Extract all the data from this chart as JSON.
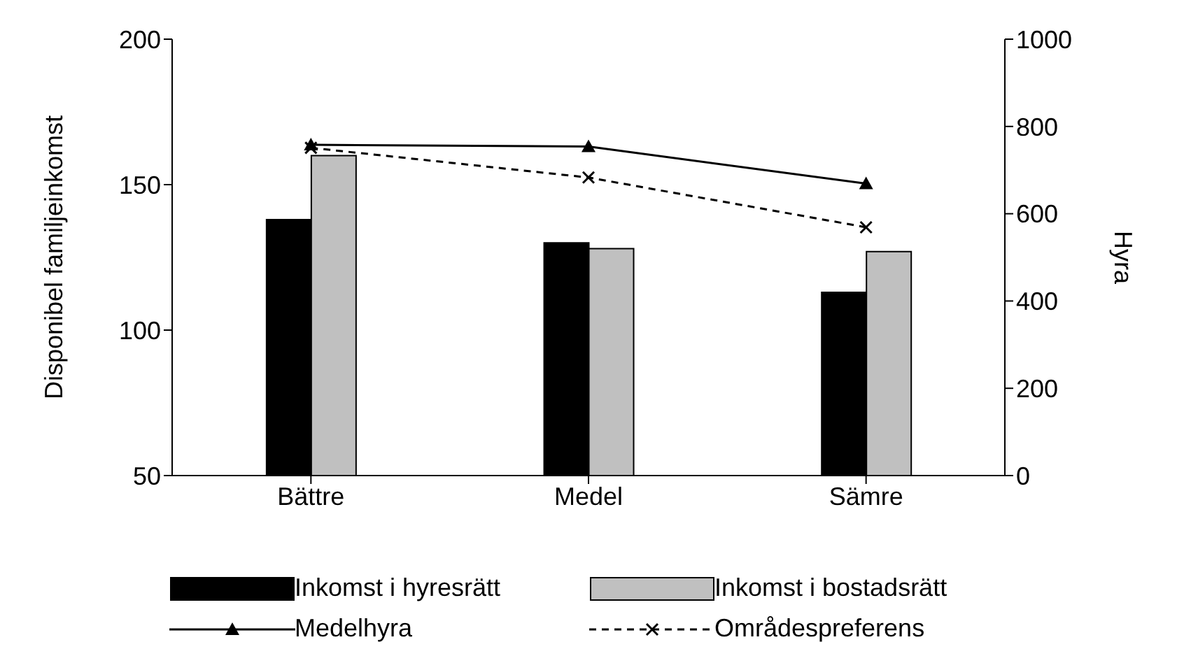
{
  "chart_data": {
    "type": "bar",
    "categories": [
      "Bättre",
      "Medel",
      "Sämre"
    ],
    "series": [
      {
        "name": "Inkomst i hyresrätt",
        "color": "#000000",
        "values": [
          138,
          130,
          113
        ]
      },
      {
        "name": "Inkomst i bostadsrätt",
        "color": "#c0c0c0",
        "values": [
          160,
          128,
          127
        ]
      },
      {
        "name": "Medelhyra",
        "type": "line",
        "axis": "y2",
        "color": "#000000",
        "marker": "triangle",
        "line_style": "solid",
        "values": [
          758,
          754,
          669
        ]
      },
      {
        "name": "Områdespreferens",
        "type": "line",
        "axis": "y2",
        "color": "#000000",
        "marker": "cross",
        "line_style": "dashed",
        "values": [
          751,
          683,
          569
        ]
      }
    ],
    "ylabel": "Disponibel familjeinkomst",
    "y2label": "Hyra",
    "ylim": [
      50,
      200
    ],
    "yticks": [
      50,
      100,
      150,
      200
    ],
    "y2lim": [
      0,
      1000
    ],
    "y2ticks": [
      0,
      200,
      400,
      600,
      800,
      1000
    ],
    "grid": false,
    "legend": "bottom"
  }
}
